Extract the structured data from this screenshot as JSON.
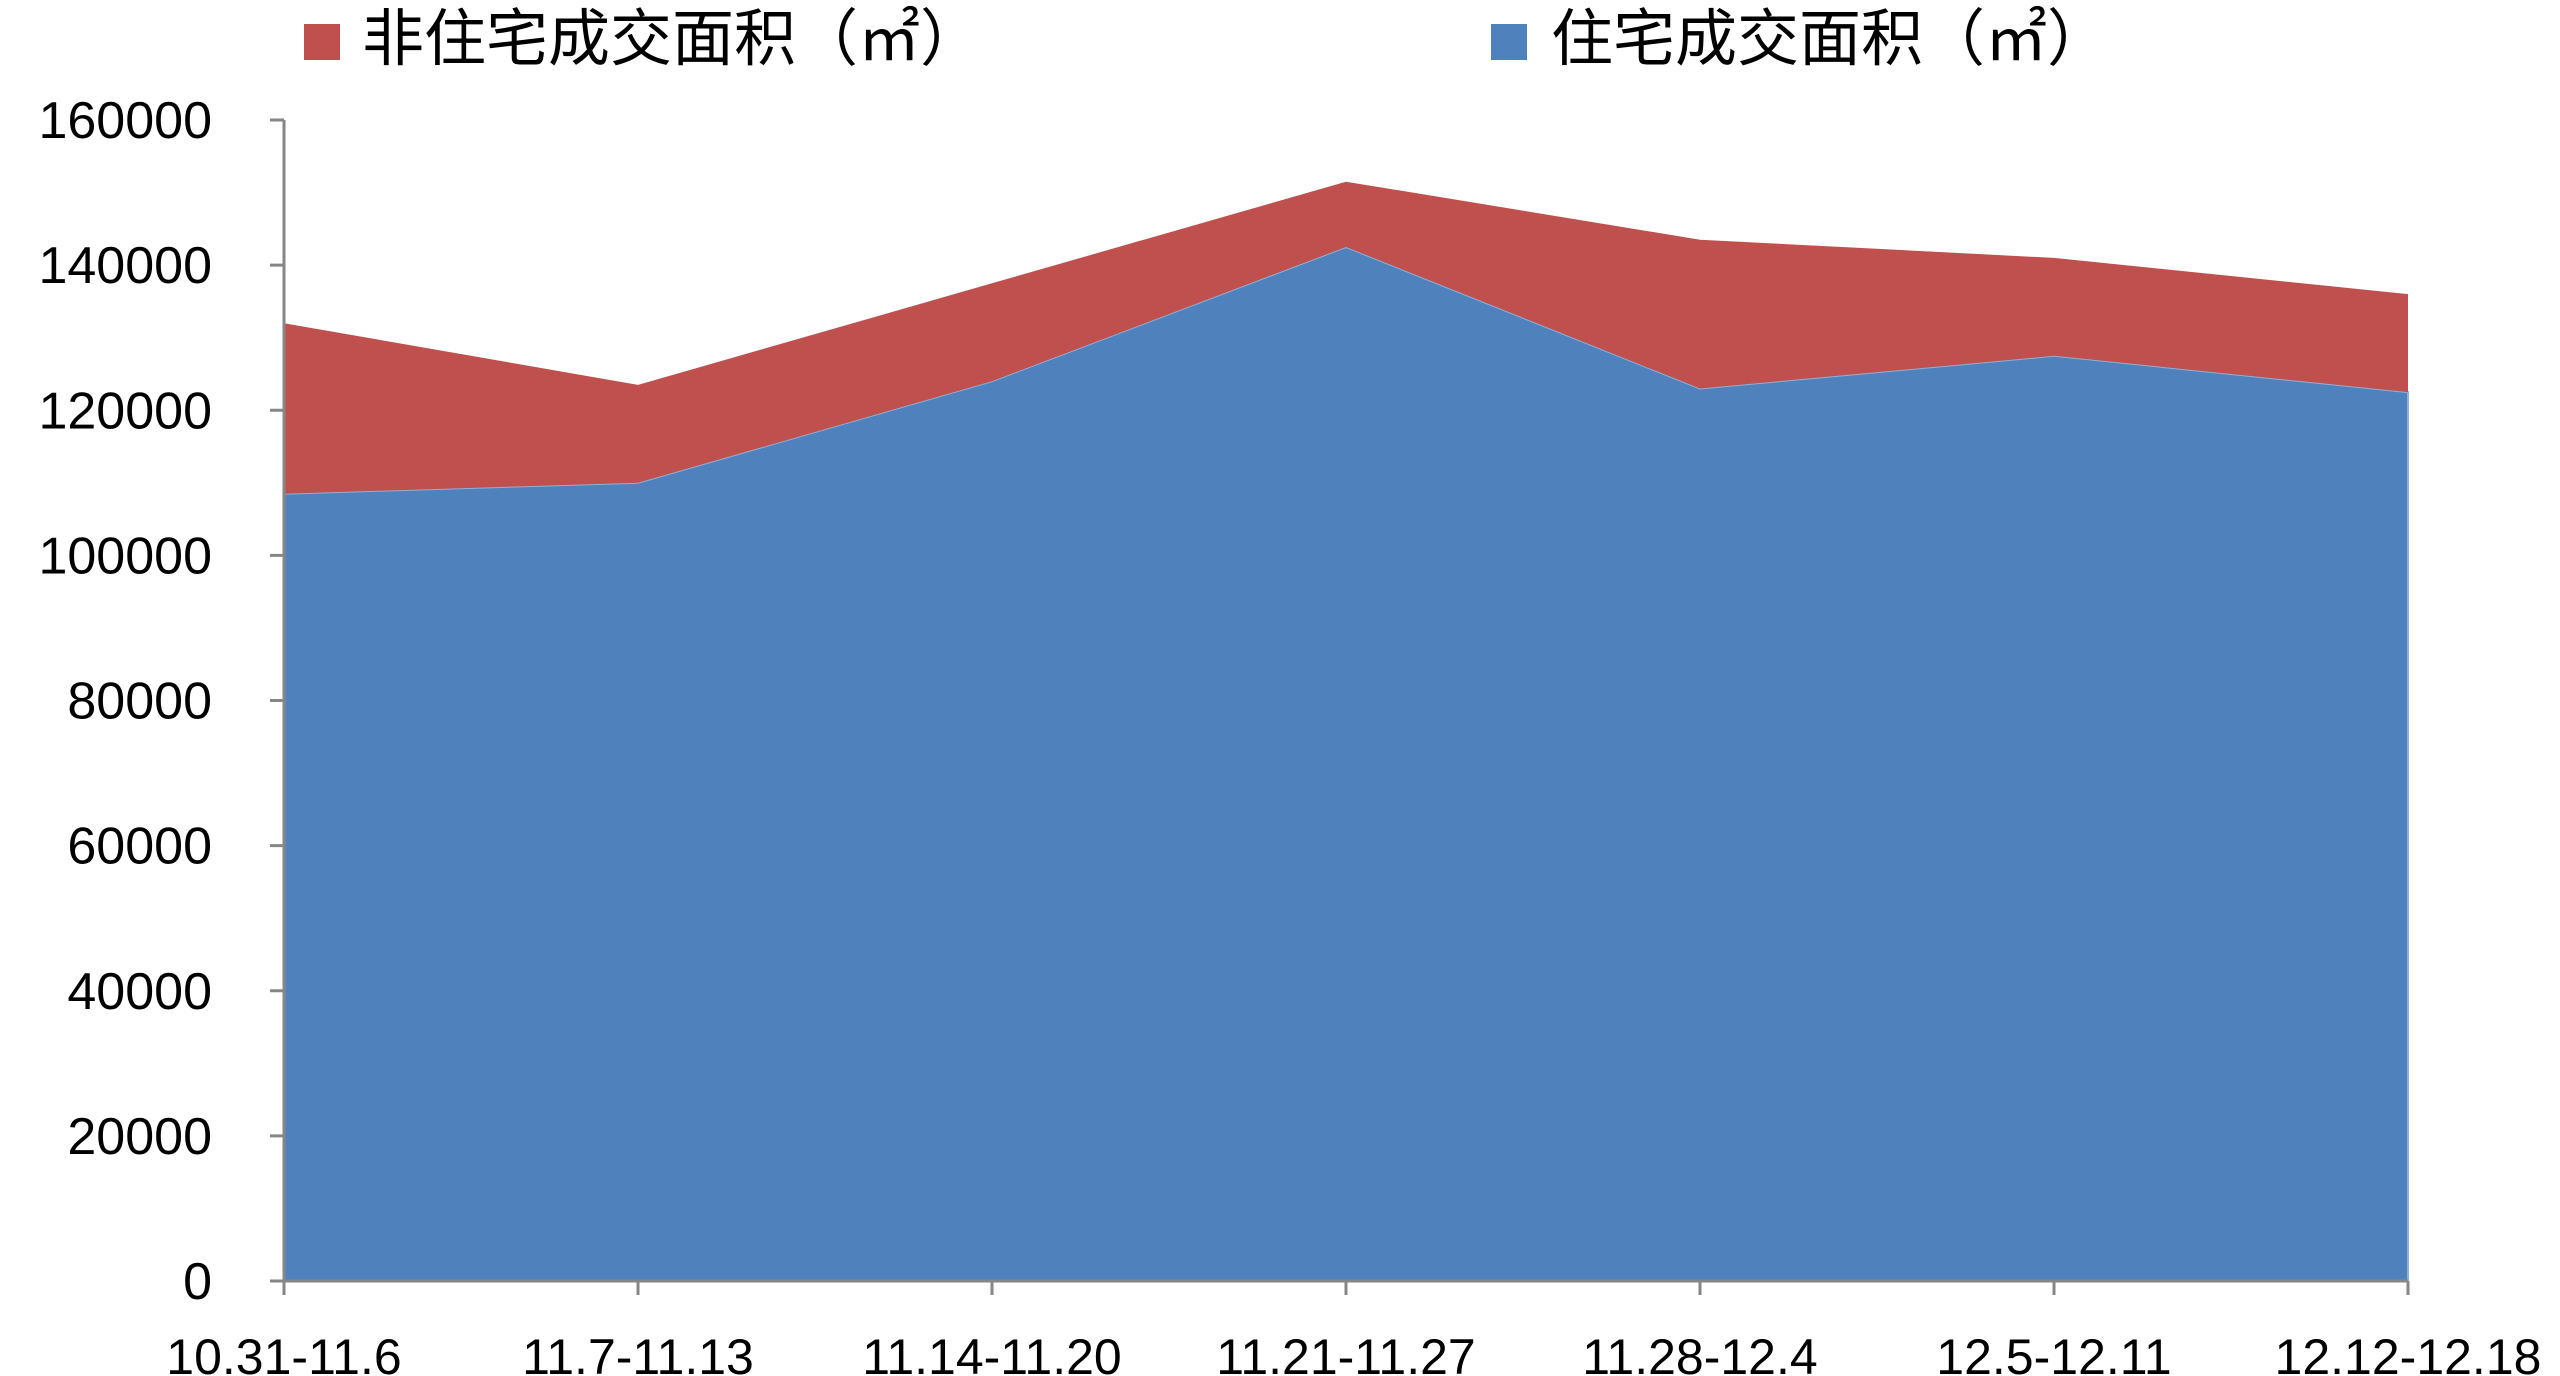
{
  "chart_data": {
    "type": "area",
    "stacked": true,
    "categories": [
      "10.31-11.6",
      "11.7-11.13",
      "11.14-11.20",
      "11.21-11.27",
      "11.28-12.4",
      "12.5-12.11",
      "12.12-12.18"
    ],
    "series": [
      {
        "name": "住宅成交面积（㎡）",
        "color": "#4f81bd",
        "values": [
          108500,
          110000,
          124000,
          142500,
          123000,
          127500,
          122500
        ]
      },
      {
        "name": "非住宅成交面积（㎡）",
        "color": "#c0504d",
        "values": [
          23500,
          13500,
          13500,
          9000,
          20500,
          13500,
          13500
        ]
      }
    ],
    "ylim": [
      0,
      160000
    ],
    "yticks": [
      0,
      20000,
      40000,
      60000,
      80000,
      100000,
      120000,
      140000,
      160000
    ],
    "grid": false,
    "legend_position": "top",
    "legend": [
      {
        "label": "非住宅成交面积（㎡）",
        "color": "#c0504d"
      },
      {
        "label": "住宅成交面积（㎡）",
        "color": "#4f81bd"
      }
    ],
    "title": "",
    "xlabel": "",
    "ylabel": ""
  }
}
